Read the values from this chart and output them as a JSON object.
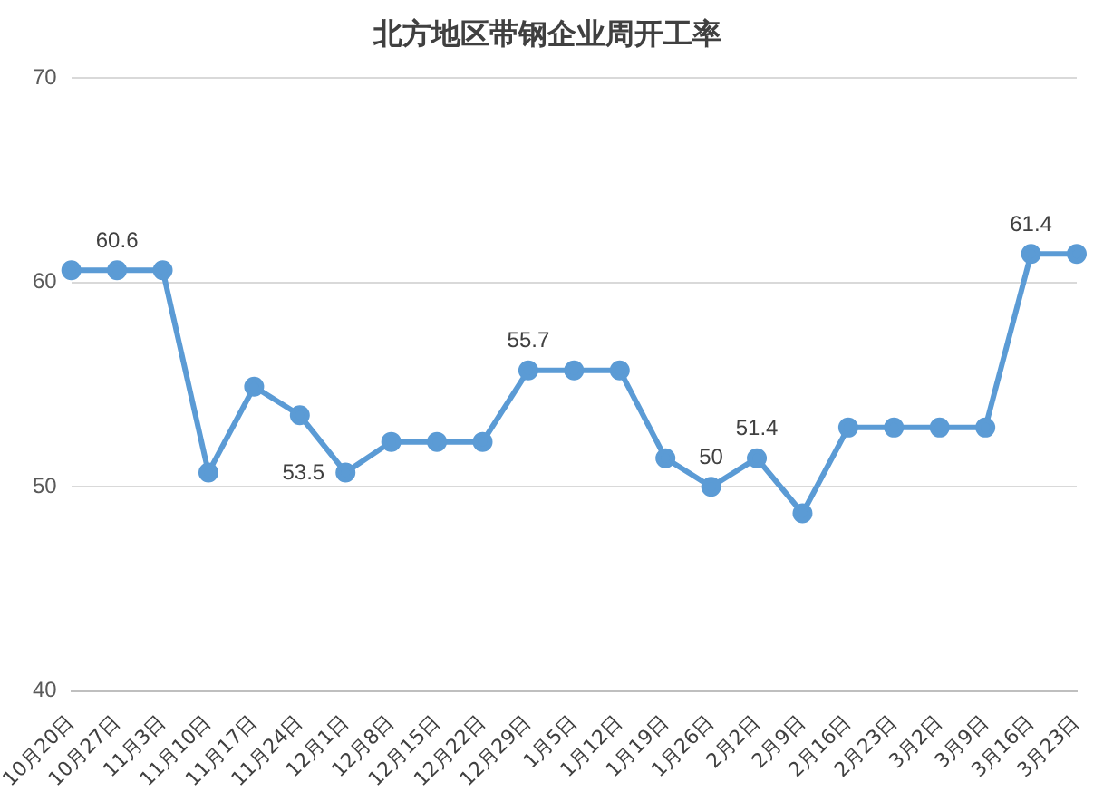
{
  "chart_data": {
    "type": "line",
    "title": "北方地区带钢企业周开工率",
    "categories": [
      "10月20日",
      "10月27日",
      "11月3日",
      "11月10日",
      "11月17日",
      "11月24日",
      "12月1日",
      "12月8日",
      "12月15日",
      "12月22日",
      "12月29日",
      "1月5日",
      "1月12日",
      "1月19日",
      "1月26日",
      "2月2日",
      "2月9日",
      "2月16日",
      "2月23日",
      "3月2日",
      "3月9日",
      "3月16日",
      "3月23日"
    ],
    "series": [
      {
        "color": "#5b9bd5",
        "values": [
          60.6,
          60.6,
          60.6,
          50.7,
          54.9,
          53.5,
          50.7,
          52.2,
          52.2,
          52.2,
          55.7,
          55.7,
          55.7,
          51.4,
          50,
          51.4,
          48.7,
          52.9,
          52.9,
          52.9,
          52.9,
          61.4,
          61.4
        ],
        "value_labels": [
          null,
          "60.6",
          null,
          null,
          null,
          "53.5",
          null,
          null,
          null,
          null,
          "55.7",
          null,
          null,
          null,
          "50",
          "51.4",
          null,
          null,
          null,
          null,
          null,
          "61.4",
          null
        ]
      }
    ],
    "ylim": [
      40,
      70
    ],
    "yticks": [
      40,
      50,
      60,
      70
    ],
    "grid": "y",
    "legend": false,
    "marker": "circle",
    "line_style": "solid"
  }
}
